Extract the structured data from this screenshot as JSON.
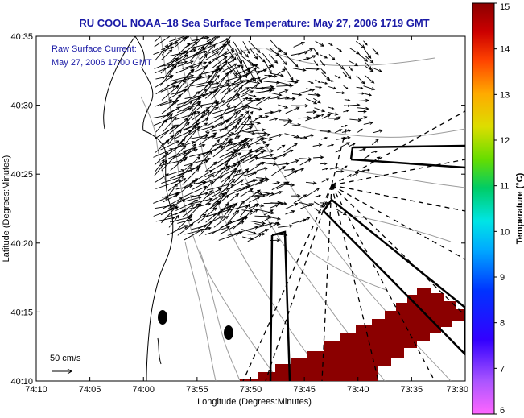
{
  "chart_data": {
    "type": "heatmap",
    "title": "RU COOL  NOAA–18  Sea Surface Temperature:  May 27, 2006 1719 GMT",
    "xlabel": "Longitude (Degrees:Minutes)",
    "ylabel": "Latitude (Degrees:Minutes)",
    "x_tick_labels": [
      "74:10",
      "74:05",
      "74:00",
      "73:55",
      "73:50",
      "73:45",
      "73:40",
      "73:35",
      "73:30"
    ],
    "y_tick_labels": [
      "40:35",
      "40:30",
      "40:25",
      "40:20",
      "40:15",
      "40:10"
    ],
    "xlim_minutes_west": [
      4450,
      4410
    ],
    "ylim_minutes_north": [
      2410,
      2435
    ],
    "overlay_lines": [
      "Raw Surface Current:",
      "May 27, 2006 17:00 GMT"
    ],
    "scale_label": "50 cm/s",
    "colorbar": {
      "label": "Temperature (°C)",
      "min": 6,
      "max": 15,
      "tick_labels": [
        "15",
        "14",
        "13",
        "12",
        "11",
        "10",
        "9",
        "8",
        "7",
        "6"
      ]
    },
    "sst_patch_color": "#8b0000",
    "sst_patch_value_c": 15,
    "grid": false
  }
}
